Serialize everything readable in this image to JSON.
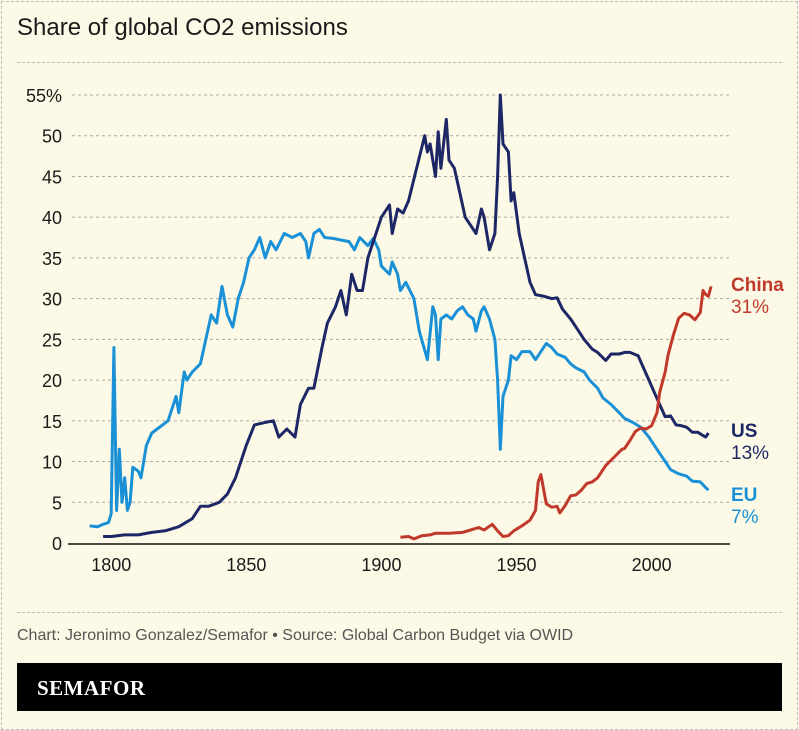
{
  "chart_data": {
    "type": "line",
    "title": "Share of global CO2 emissions",
    "xlim": [
      1784,
      2029
    ],
    "ylim": [
      0,
      55
    ],
    "x_ticks": [
      1800,
      1850,
      1900,
      1950,
      2000
    ],
    "y_ticks": [
      0,
      5,
      10,
      15,
      20,
      25,
      30,
      35,
      40,
      45,
      50,
      55
    ],
    "y_tick_labels": [
      "0",
      "5",
      "10",
      "15",
      "20",
      "25",
      "30",
      "35",
      "40",
      "45",
      "50",
      "55%"
    ],
    "grid": "horizontal dashed",
    "legend": "direct labels at line ends (right)",
    "series": [
      {
        "name": "US",
        "end_label": "13%",
        "color": "#1d2766",
        "points": [
          [
            1797,
            0.8
          ],
          [
            1800,
            0.8
          ],
          [
            1805,
            1.0
          ],
          [
            1810,
            1.0
          ],
          [
            1815,
            1.3
          ],
          [
            1820,
            1.5
          ],
          [
            1825,
            2
          ],
          [
            1830,
            3
          ],
          [
            1833,
            4.5
          ],
          [
            1836,
            4.5
          ],
          [
            1840,
            5
          ],
          [
            1843,
            6
          ],
          [
            1846,
            8
          ],
          [
            1848,
            10
          ],
          [
            1850,
            12
          ],
          [
            1853,
            14.5
          ],
          [
            1857,
            14.8
          ],
          [
            1860,
            15
          ],
          [
            1862,
            13
          ],
          [
            1865,
            14
          ],
          [
            1868,
            13
          ],
          [
            1870,
            17
          ],
          [
            1873,
            19
          ],
          [
            1875,
            19
          ],
          [
            1878,
            24
          ],
          [
            1880,
            27
          ],
          [
            1883,
            29
          ],
          [
            1885,
            31
          ],
          [
            1887,
            28
          ],
          [
            1889,
            33
          ],
          [
            1891,
            31
          ],
          [
            1893,
            31
          ],
          [
            1895,
            35
          ],
          [
            1897,
            37
          ],
          [
            1900,
            40
          ],
          [
            1903,
            41.5
          ],
          [
            1904,
            38
          ],
          [
            1906,
            41
          ],
          [
            1908,
            40.5
          ],
          [
            1910,
            42
          ],
          [
            1913,
            46
          ],
          [
            1916,
            50
          ],
          [
            1917,
            48
          ],
          [
            1918,
            49
          ],
          [
            1920,
            45
          ],
          [
            1921,
            50.5
          ],
          [
            1922,
            46
          ],
          [
            1924,
            52
          ],
          [
            1925,
            47
          ],
          [
            1927,
            46
          ],
          [
            1929,
            43
          ],
          [
            1931,
            40
          ],
          [
            1933,
            39
          ],
          [
            1935,
            38
          ],
          [
            1937,
            41
          ],
          [
            1938,
            40
          ],
          [
            1940,
            36
          ],
          [
            1942,
            38
          ],
          [
            1943,
            45
          ],
          [
            1944,
            55
          ],
          [
            1945,
            49
          ],
          [
            1947,
            48
          ],
          [
            1948,
            42
          ],
          [
            1949,
            43
          ],
          [
            1951,
            38
          ],
          [
            1953,
            35
          ],
          [
            1955,
            32
          ],
          [
            1957,
            30.5
          ],
          [
            1960,
            30.3
          ],
          [
            1963,
            30
          ],
          [
            1965,
            30.1
          ],
          [
            1967,
            28.7
          ],
          [
            1970,
            27.5
          ],
          [
            1972,
            26.5
          ],
          [
            1975,
            25
          ],
          [
            1978,
            23.8
          ],
          [
            1980,
            23.4
          ],
          [
            1983,
            22.4
          ],
          [
            1985,
            23.2
          ],
          [
            1988,
            23.2
          ],
          [
            1990,
            23.4
          ],
          [
            1992,
            23.4
          ],
          [
            1995,
            23
          ],
          [
            1997,
            21.5
          ],
          [
            1999,
            20
          ],
          [
            2001,
            18.5
          ],
          [
            2003,
            17
          ],
          [
            2005,
            15.5
          ],
          [
            2007,
            15.6
          ],
          [
            2009,
            14.5
          ],
          [
            2011,
            14.4
          ],
          [
            2013,
            14.2
          ],
          [
            2015,
            13.6
          ],
          [
            2017,
            13.6
          ],
          [
            2019,
            13.2
          ],
          [
            2020,
            13
          ],
          [
            2021,
            13.5
          ]
        ]
      },
      {
        "name": "EU",
        "end_label": "7%",
        "color": "#1a90d6",
        "points": [
          [
            1792,
            2.1
          ],
          [
            1795,
            2.0
          ],
          [
            1797,
            2.3
          ],
          [
            1799,
            2.5
          ],
          [
            1800,
            3.6
          ],
          [
            1801,
            24
          ],
          [
            1802,
            4
          ],
          [
            1803,
            11.5
          ],
          [
            1804,
            5
          ],
          [
            1805,
            8
          ],
          [
            1806,
            4
          ],
          [
            1807,
            5
          ],
          [
            1808,
            9.3
          ],
          [
            1810,
            8.8
          ],
          [
            1811,
            8
          ],
          [
            1813,
            12
          ],
          [
            1815,
            13.5
          ],
          [
            1817,
            14
          ],
          [
            1819,
            14.5
          ],
          [
            1821,
            15
          ],
          [
            1822,
            16
          ],
          [
            1824,
            18
          ],
          [
            1825,
            16
          ],
          [
            1827,
            21
          ],
          [
            1828,
            20
          ],
          [
            1830,
            21
          ],
          [
            1833,
            22
          ],
          [
            1835,
            25
          ],
          [
            1837,
            28
          ],
          [
            1839,
            27
          ],
          [
            1841,
            31.5
          ],
          [
            1843,
            28
          ],
          [
            1845,
            26.5
          ],
          [
            1847,
            30
          ],
          [
            1849,
            32
          ],
          [
            1851,
            35
          ],
          [
            1853,
            36
          ],
          [
            1855,
            37.5
          ],
          [
            1857,
            35
          ],
          [
            1859,
            37
          ],
          [
            1861,
            36
          ],
          [
            1864,
            38
          ],
          [
            1867,
            37.5
          ],
          [
            1870,
            38
          ],
          [
            1872,
            37
          ],
          [
            1873,
            35
          ],
          [
            1875,
            38
          ],
          [
            1877,
            38.5
          ],
          [
            1879,
            37.5
          ],
          [
            1882,
            37.4
          ],
          [
            1885,
            37.2
          ],
          [
            1888,
            37
          ],
          [
            1890,
            36
          ],
          [
            1892,
            37.5
          ],
          [
            1895,
            36.5
          ],
          [
            1897,
            37.4
          ],
          [
            1899,
            36
          ],
          [
            1900,
            34
          ],
          [
            1903,
            33
          ],
          [
            1904,
            34.5
          ],
          [
            1906,
            33
          ],
          [
            1907,
            31
          ],
          [
            1909,
            32
          ],
          [
            1912,
            30
          ],
          [
            1914,
            26
          ],
          [
            1917,
            22.5
          ],
          [
            1919,
            29
          ],
          [
            1920,
            28
          ],
          [
            1921,
            22.5
          ],
          [
            1922,
            27.5
          ],
          [
            1924,
            28
          ],
          [
            1926,
            27.5
          ],
          [
            1928,
            28.5
          ],
          [
            1930,
            29
          ],
          [
            1932,
            28
          ],
          [
            1934,
            27.5
          ],
          [
            1935,
            26
          ],
          [
            1937,
            28.5
          ],
          [
            1938,
            29
          ],
          [
            1940,
            27.5
          ],
          [
            1942,
            25
          ],
          [
            1943,
            20
          ],
          [
            1944,
            11.5
          ],
          [
            1945,
            18
          ],
          [
            1947,
            20
          ],
          [
            1948,
            23
          ],
          [
            1950,
            22.5
          ],
          [
            1952,
            23.5
          ],
          [
            1955,
            23.5
          ],
          [
            1957,
            22.5
          ],
          [
            1959,
            23.5
          ],
          [
            1961,
            24.5
          ],
          [
            1963,
            24
          ],
          [
            1965,
            23.2
          ],
          [
            1968,
            22.8
          ],
          [
            1970,
            22
          ],
          [
            1972,
            21.5
          ],
          [
            1975,
            21
          ],
          [
            1977,
            20
          ],
          [
            1980,
            19
          ],
          [
            1982,
            17.8
          ],
          [
            1985,
            17
          ],
          [
            1988,
            16
          ],
          [
            1990,
            15.3
          ],
          [
            1993,
            14.8
          ],
          [
            1996,
            14.2
          ],
          [
            1999,
            13
          ],
          [
            2001,
            12
          ],
          [
            2003,
            11
          ],
          [
            2005,
            10
          ],
          [
            2007,
            9
          ],
          [
            2010,
            8.5
          ],
          [
            2013,
            8.2
          ],
          [
            2015,
            7.6
          ],
          [
            2018,
            7.5
          ],
          [
            2020,
            6.8
          ],
          [
            2021,
            6.5
          ]
        ]
      },
      {
        "name": "China",
        "end_label": "31%",
        "color": "#c0392b",
        "points": [
          [
            1907,
            0.7
          ],
          [
            1910,
            0.8
          ],
          [
            1912,
            0.5
          ],
          [
            1915,
            0.9
          ],
          [
            1918,
            1.0
          ],
          [
            1920,
            1.2
          ],
          [
            1925,
            1.2
          ],
          [
            1930,
            1.3
          ],
          [
            1933,
            1.6
          ],
          [
            1936,
            1.9
          ],
          [
            1938,
            1.6
          ],
          [
            1941,
            2.3
          ],
          [
            1943,
            1.5
          ],
          [
            1945,
            0.8
          ],
          [
            1947,
            0.9
          ],
          [
            1949,
            1.5
          ],
          [
            1952,
            2.1
          ],
          [
            1955,
            2.8
          ],
          [
            1957,
            4.0
          ],
          [
            1958,
            7.5
          ],
          [
            1959,
            8.4
          ],
          [
            1961,
            4.8
          ],
          [
            1963,
            4.4
          ],
          [
            1965,
            4.5
          ],
          [
            1966,
            3.7
          ],
          [
            1968,
            4.6
          ],
          [
            1970,
            5.8
          ],
          [
            1972,
            5.9
          ],
          [
            1974,
            6.5
          ],
          [
            1976,
            7.3
          ],
          [
            1978,
            7.5
          ],
          [
            1980,
            8.0
          ],
          [
            1983,
            9.5
          ],
          [
            1986,
            10.5
          ],
          [
            1989,
            11.5
          ],
          [
            1990,
            11.6
          ],
          [
            1992,
            12.6
          ],
          [
            1994,
            13.7
          ],
          [
            1996,
            14.1
          ],
          [
            1998,
            14.0
          ],
          [
            2000,
            14.4
          ],
          [
            2002,
            16.0
          ],
          [
            2003,
            18.5
          ],
          [
            2005,
            21
          ],
          [
            2006,
            23
          ],
          [
            2008,
            25.5
          ],
          [
            2010,
            27.6
          ],
          [
            2012,
            28.2
          ],
          [
            2014,
            28
          ],
          [
            2016,
            27.4
          ],
          [
            2018,
            28.3
          ],
          [
            2019,
            31
          ],
          [
            2020,
            30.5
          ],
          [
            2021,
            30.3
          ],
          [
            2022,
            31.5
          ]
        ]
      }
    ]
  },
  "credit": "Chart: Jeronimo Gonzalez/Semafor • Source: Global Carbon Budget via OWID",
  "footer": {
    "logo": "SEMAFOR"
  }
}
